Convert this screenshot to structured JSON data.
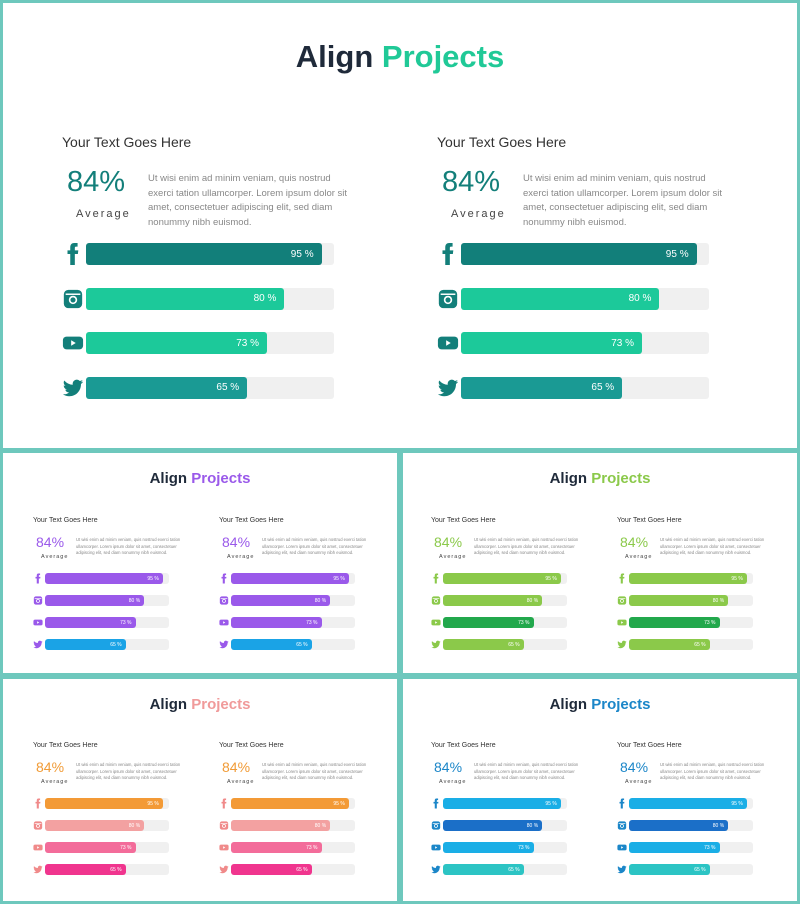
{
  "common": {
    "title_dark": "Align",
    "title_accent": "Projects",
    "heading": "Your Text Goes Here",
    "percent": "84%",
    "average": "Average",
    "paragraph": "Ut wisi enim ad minim veniam, quis nostrud exerci tation ullamcorper. Lorem ipsum dolor sit amet, consectetuer adipiscing elit, sed diam nonummy nibh euismod.",
    "bars": [
      {
        "icon": "facebook-icon",
        "value": 95,
        "label": "95 %"
      },
      {
        "icon": "instagram-icon",
        "value": 80,
        "label": "80 %"
      },
      {
        "icon": "youtube-icon",
        "value": 73,
        "label": "73 %"
      },
      {
        "icon": "twitter-icon",
        "value": 65,
        "label": "65 %"
      }
    ]
  },
  "slides": [
    {
      "name": "teal",
      "accent": "#20c997",
      "percent_color": "#137f7a",
      "icon_color": "#137f7a",
      "bar_colors": [
        "#127f7a",
        "#1cc99a",
        "#1cc99a",
        "#1a9a94"
      ]
    },
    {
      "name": "purple",
      "accent": "#9a59ea",
      "percent_color": "#9a59ea",
      "icon_color": "#9a59ea",
      "bar_colors": [
        "#9a59ea",
        "#9a59ea",
        "#9a59ea",
        "#1aa3e6"
      ]
    },
    {
      "name": "green",
      "accent": "#8bc94a",
      "percent_color": "#8bc94a",
      "icon_color": "#8bc94a",
      "bar_colors": [
        "#8bc94a",
        "#8bc94a",
        "#22a84c",
        "#8bc94a"
      ]
    },
    {
      "name": "pink",
      "accent": "#f09a9a",
      "percent_color": "#f19b36",
      "icon_color": "#f08a8a",
      "bar_colors": [
        "#f39a36",
        "#f3a1a1",
        "#f36c9a",
        "#f0358e"
      ]
    },
    {
      "name": "blue",
      "accent": "#1b86c8",
      "percent_color": "#1b86c8",
      "icon_color": "#1b86c8",
      "bar_colors": [
        "#1aaee6",
        "#1b6fc8",
        "#1aaee6",
        "#2cc4c4"
      ]
    }
  ]
}
